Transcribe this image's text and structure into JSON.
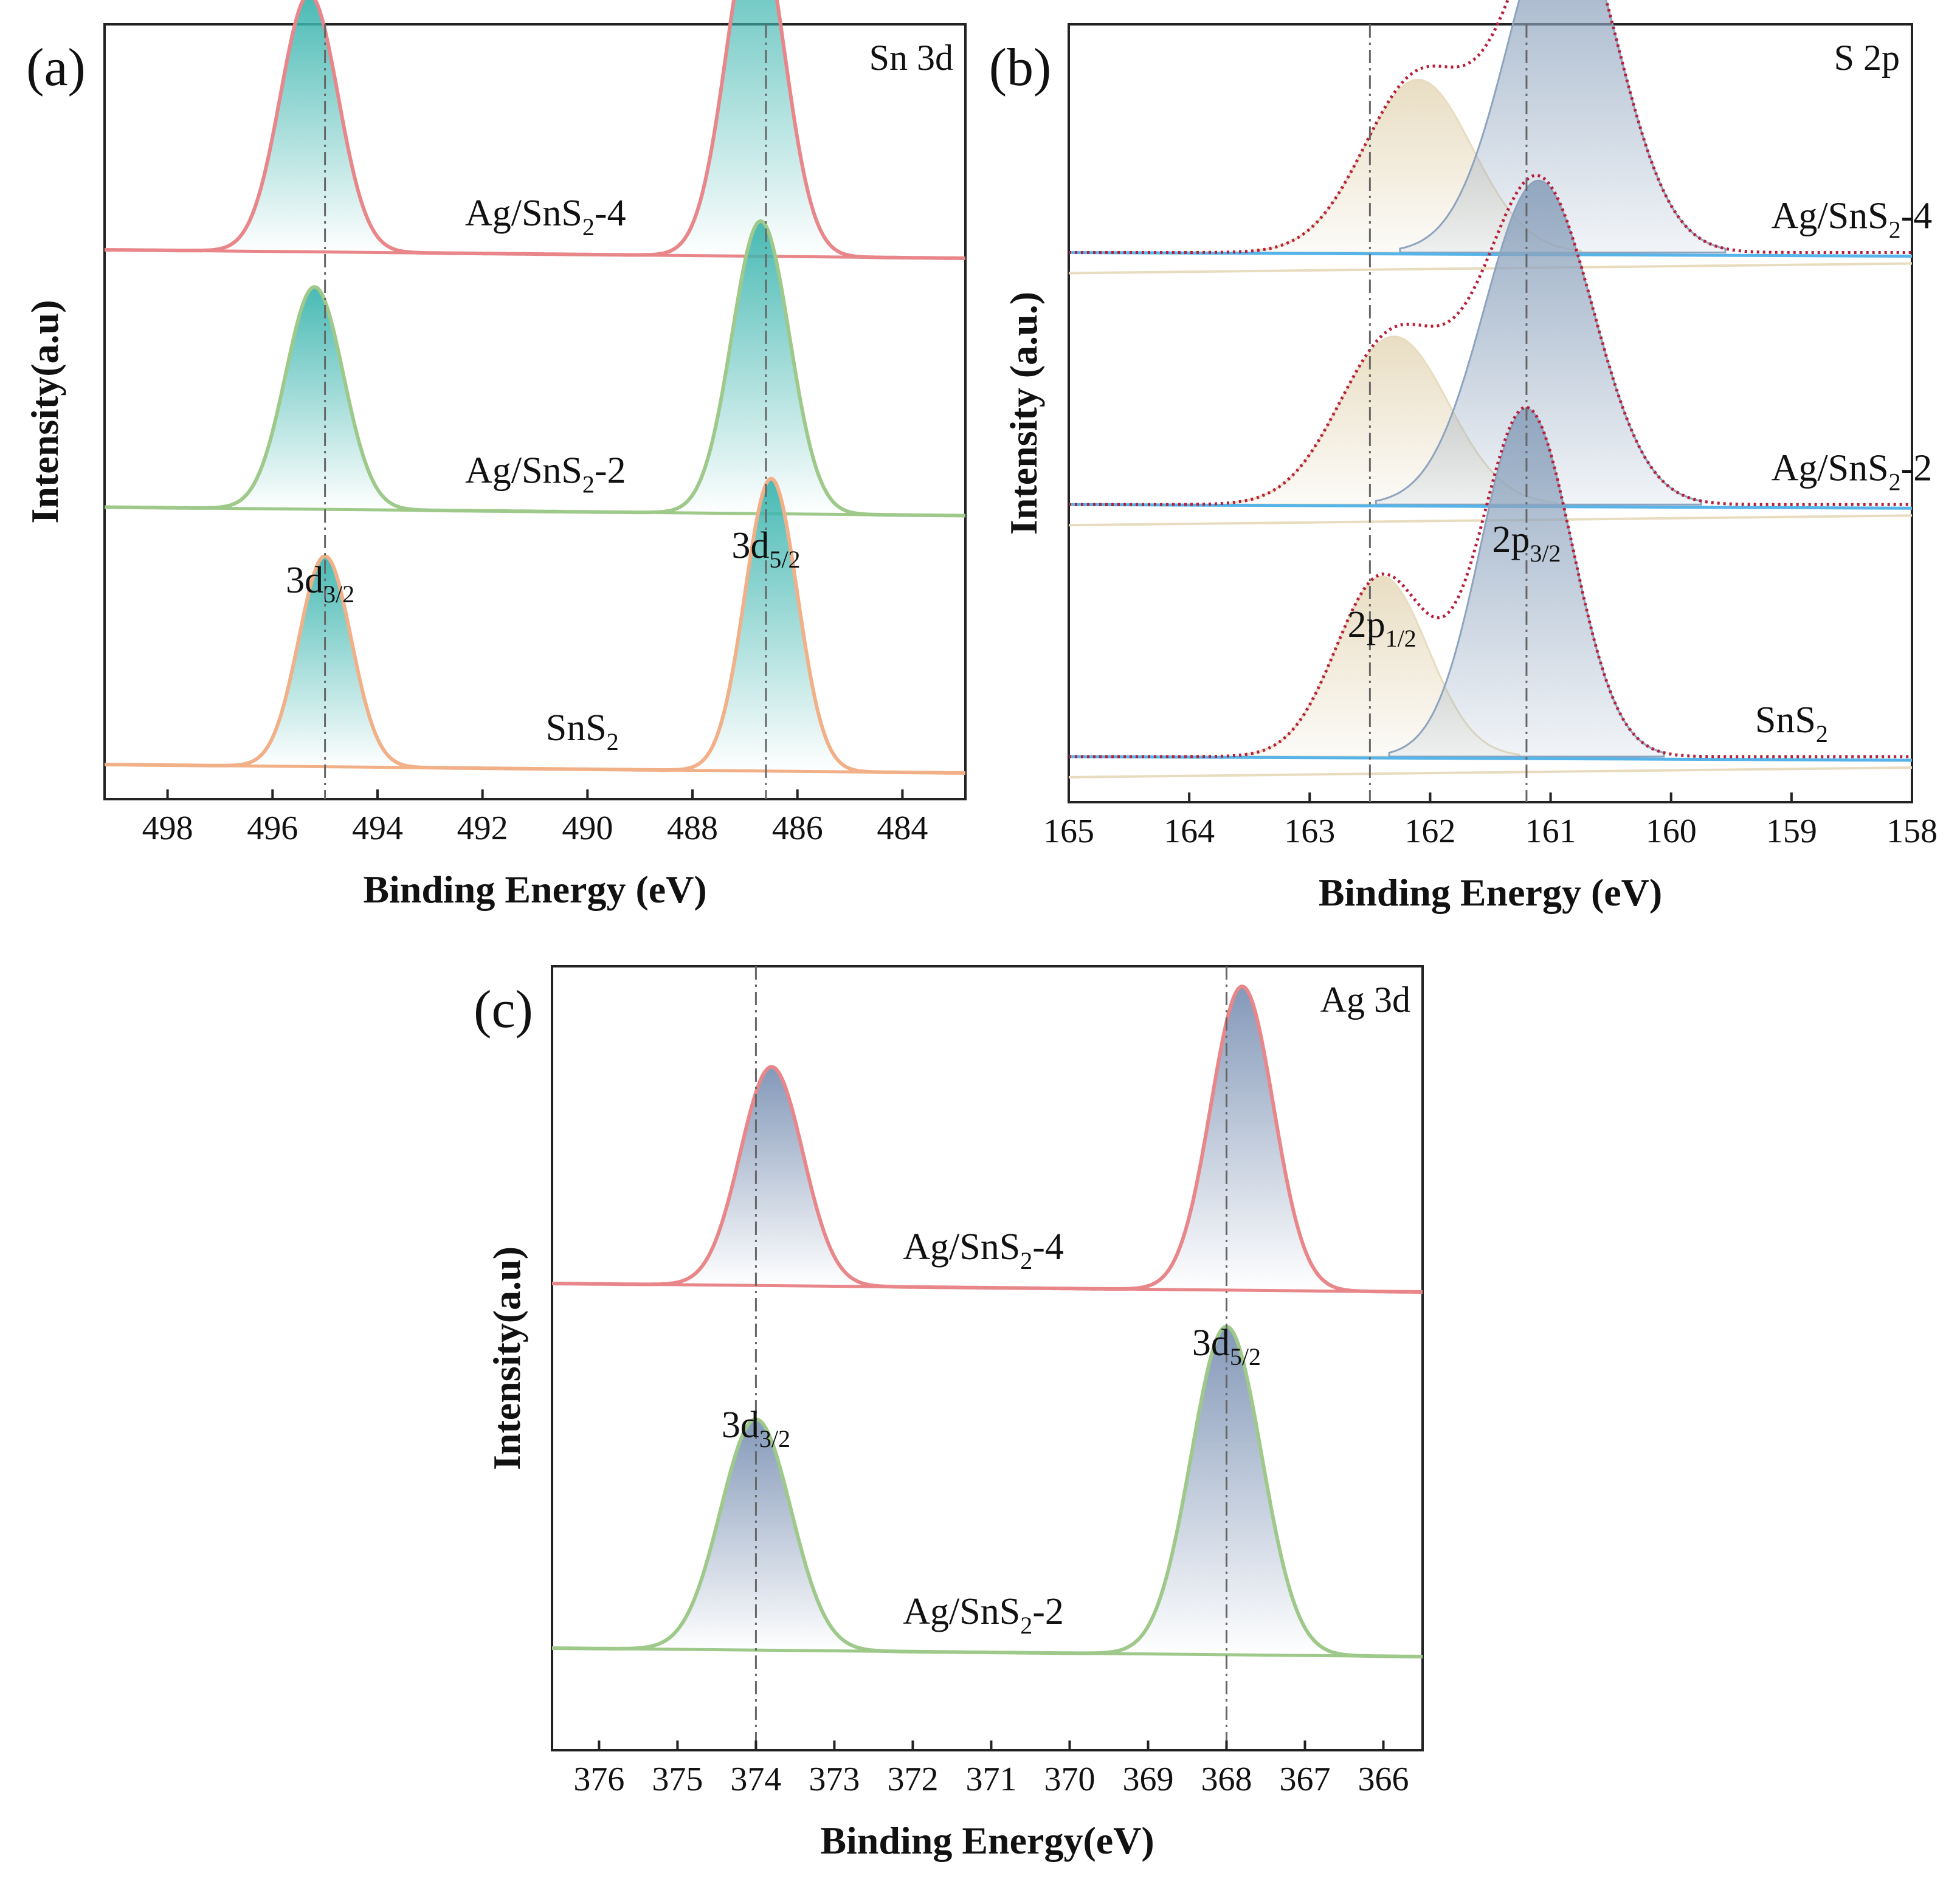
{
  "chart_data": [
    {
      "id": "a",
      "type": "line",
      "panel_label": "(a)",
      "element_label": "Sn 3d",
      "xlabel": "Binding Energy (eV)",
      "ylabel": "Intensity(a.u)",
      "xlim": [
        499.2,
        482.8
      ],
      "xticks": [
        498,
        496,
        494,
        492,
        490,
        488,
        486,
        484
      ],
      "reference_lines": [
        495.0,
        486.6
      ],
      "peak_labels": [
        {
          "main": "3d",
          "sub": "3/2",
          "x": 495.0
        },
        {
          "main": "3d",
          "sub": "5/2",
          "x": 486.6
        }
      ],
      "fill_color": "#3fb6b0",
      "series": [
        {
          "name": "Ag/SnS₂-4",
          "main": "Ag/SnS",
          "sub": "2",
          "suffix": "-4",
          "color": "#e8868a",
          "offset": 2.2,
          "peaks": [
            {
              "x": 495.3,
              "h": 1.1
            },
            {
              "x": 486.8,
              "h": 1.45
            }
          ],
          "width": 0.55,
          "label_x": 490.8
        },
        {
          "name": "Ag/SnS₂-2",
          "main": "Ag/SnS",
          "sub": "2",
          "suffix": "-2",
          "color": "#9ec98a",
          "offset": 1.1,
          "peaks": [
            {
              "x": 495.2,
              "h": 0.95
            },
            {
              "x": 486.7,
              "h": 1.25
            }
          ],
          "width": 0.55,
          "label_x": 490.8
        },
        {
          "name": "SnS₂",
          "main": "SnS",
          "sub": "2",
          "suffix": "",
          "color": "#f2b088",
          "offset": 0.0,
          "peaks": [
            {
              "x": 495.0,
              "h": 0.9
            },
            {
              "x": 486.5,
              "h": 1.25
            }
          ],
          "width": 0.5,
          "label_x": 490.1
        }
      ]
    },
    {
      "id": "b",
      "type": "line",
      "panel_label": "(b)",
      "element_label": "S 2p",
      "xlabel": "Binding Energy (eV)",
      "ylabel": "Intensity (a.u.)",
      "xlim": [
        165,
        158
      ],
      "xticks": [
        165,
        164,
        163,
        162,
        161,
        160,
        159,
        158
      ],
      "reference_lines": [
        162.5,
        161.2
      ],
      "peak_labels": [
        {
          "main": "2p",
          "sub": "1/2",
          "x": 162.4
        },
        {
          "main": "2p",
          "sub": "3/2",
          "x": 161.2
        }
      ],
      "component_colors": {
        "p12": "#e8dcc0",
        "p32": "#8ea4be",
        "envelope": "#b8203a",
        "baseline": "#56b4e8"
      },
      "series": [
        {
          "name": "Ag/SnS₂-4",
          "main": "Ag/SnS",
          "sub": "2",
          "suffix": "-4",
          "offset": 2.1,
          "p12": {
            "x": 162.1,
            "h": 0.72
          },
          "p32": {
            "x": 160.9,
            "h": 1.45
          },
          "width": 0.45,
          "label_x": 158.5
        },
        {
          "name": "Ag/SnS₂-2",
          "main": "Ag/SnS",
          "sub": "2",
          "suffix": "-2",
          "offset": 1.05,
          "p12": {
            "x": 162.3,
            "h": 0.7
          },
          "p32": {
            "x": 161.1,
            "h": 1.35
          },
          "width": 0.45,
          "label_x": 158.5
        },
        {
          "name": "SnS₂",
          "main": "SnS",
          "sub": "2",
          "suffix": "",
          "offset": 0.0,
          "p12": {
            "x": 162.4,
            "h": 0.75
          },
          "p32": {
            "x": 161.2,
            "h": 1.45
          },
          "width": 0.38,
          "label_x": 159.0
        }
      ]
    },
    {
      "id": "c",
      "type": "line",
      "panel_label": "(c)",
      "element_label": "Ag 3d",
      "xlabel": "Binding Energy(eV)",
      "ylabel": "Intensity(a.u)",
      "xlim": [
        376.6,
        365.5
      ],
      "xticks": [
        376,
        375,
        374,
        373,
        372,
        371,
        370,
        369,
        368,
        367,
        366
      ],
      "reference_lines": [
        374.0,
        368.0
      ],
      "peak_labels": [
        {
          "main": "3d",
          "sub": "3/2",
          "x": 374.0
        },
        {
          "main": "3d",
          "sub": "5/2",
          "x": 368.0
        }
      ],
      "fill_color": "#7d93b5",
      "series": [
        {
          "name": "Ag/SnS₂-4",
          "main": "Ag/SnS",
          "sub": "2",
          "suffix": "-4",
          "color": "#e8868a",
          "offset": 1.5,
          "peaks": [
            {
              "x": 373.8,
              "h": 0.9
            },
            {
              "x": 367.8,
              "h": 1.25
            }
          ],
          "width": 0.4,
          "label_x": 371.1
        },
        {
          "name": "Ag/SnS₂-2",
          "main": "Ag/SnS",
          "sub": "2",
          "suffix": "-2",
          "color": "#9ec98a",
          "offset": 0.0,
          "peaks": [
            {
              "x": 374.0,
              "h": 0.95
            },
            {
              "x": 368.0,
              "h": 1.35
            }
          ],
          "width": 0.45,
          "label_x": 371.1
        }
      ]
    }
  ]
}
